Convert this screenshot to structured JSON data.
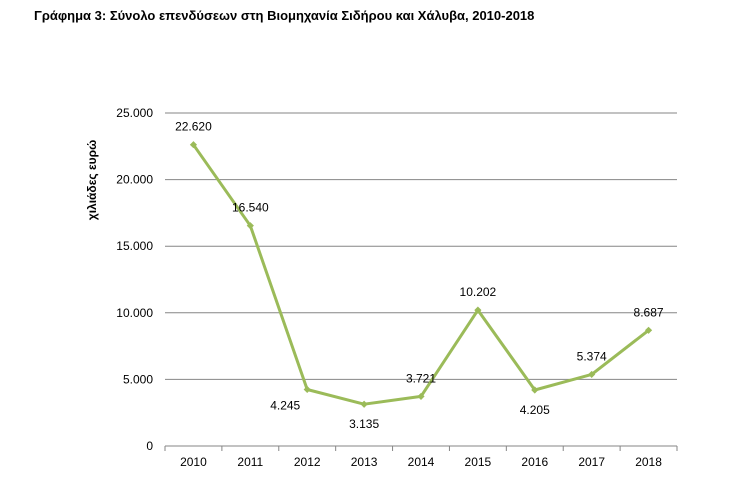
{
  "header": {
    "title": "Γράφημα 3: Σύνολο επενδύσεων στη Βιομηχανία Σιδήρου και Χάλυβα, 2010-2018"
  },
  "chart_data": {
    "type": "line",
    "title": "Γράφημα 3: Σύνολο επενδύσεων στη Βιομηχανία Σιδήρου και Χάλυβα, 2010-2018",
    "xlabel": "",
    "ylabel": "χιλιάδες ευρώ",
    "categories": [
      "2010",
      "2011",
      "2012",
      "2013",
      "2014",
      "2015",
      "2016",
      "2017",
      "2018"
    ],
    "series": [
      {
        "values": [
          22620,
          16540,
          4245,
          3135,
          3721,
          10202,
          4205,
          5374,
          8687
        ],
        "labels": [
          "22.620",
          "16.540",
          "4.245",
          "3.135",
          "3.721",
          "10.202",
          "4.205",
          "5.374",
          "8.687"
        ],
        "color": "#9bbb59"
      }
    ],
    "ylim": [
      0,
      25000
    ],
    "yticks": [
      0,
      5000,
      10000,
      15000,
      20000,
      25000
    ],
    "ytick_labels": [
      "0",
      "5.000",
      "10.000",
      "15.000",
      "20.000",
      "25.000"
    ],
    "grid": true,
    "gridline_color": "#868686",
    "legend": "none"
  }
}
